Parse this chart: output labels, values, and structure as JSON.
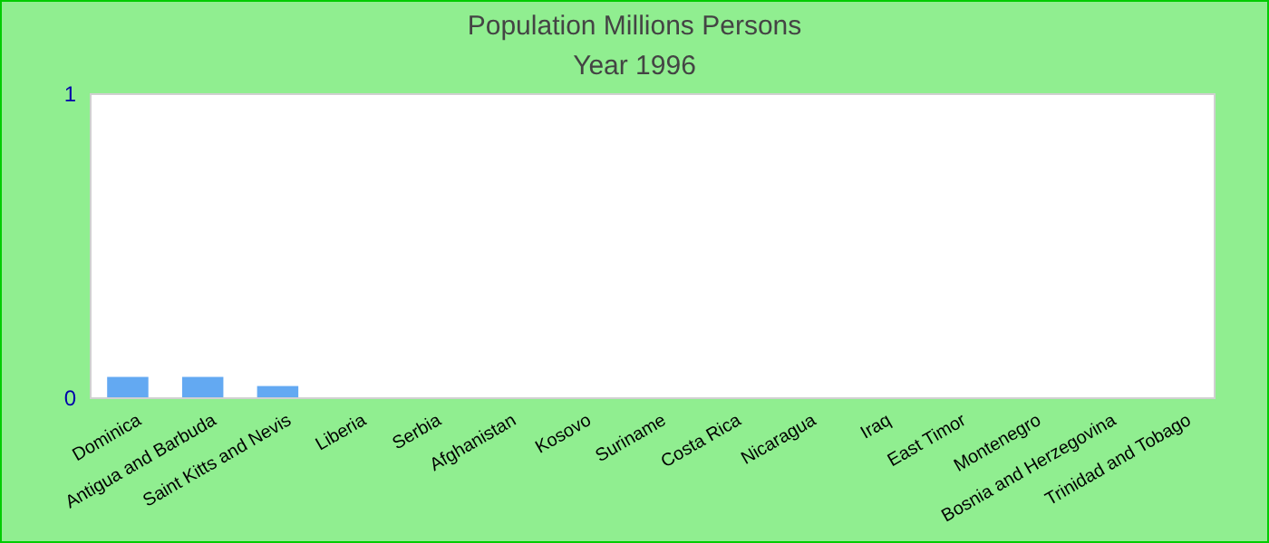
{
  "chart_data": {
    "type": "bar",
    "title": "Population Millions Persons",
    "subtitle": "Year 1996",
    "categories": [
      "Dominica",
      "Antigua and Barbuda",
      "Saint Kitts and Nevis",
      "Liberia",
      "Serbia",
      "Afghanistan",
      "Kosovo",
      "Suriname",
      "Costa Rica",
      "Nicaragua",
      "Iraq",
      "East Timor",
      "Montenegro",
      "Bosnia and Herzegovina",
      "Trinidad and Tobago"
    ],
    "values": [
      0.07,
      0.07,
      0.04,
      null,
      null,
      null,
      null,
      null,
      null,
      null,
      null,
      null,
      null,
      null,
      null
    ],
    "color": "#63a9f2",
    "ylim": [
      0,
      1
    ],
    "yticks": [
      0,
      1
    ],
    "grid": false
  }
}
